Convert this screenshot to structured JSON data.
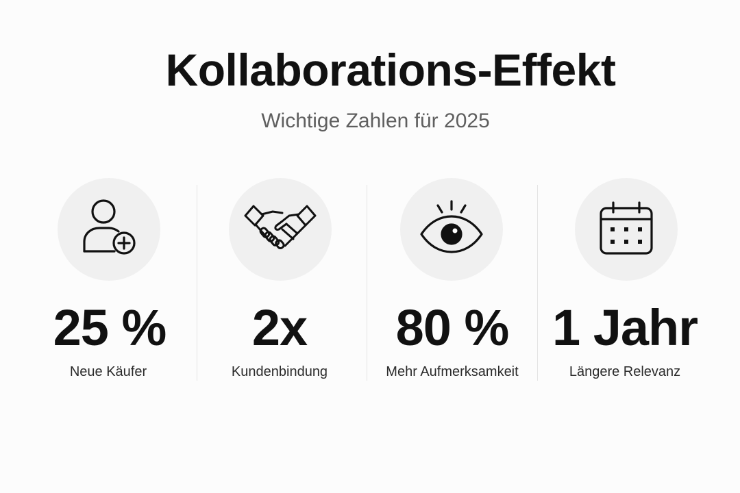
{
  "header": {
    "title": "Kollaborations-Effekt",
    "subtitle": "Wichtige Zahlen für 2025"
  },
  "colors": {
    "background": "#fcfcfc",
    "icon_circle": "#f0f0f0",
    "text": "#111111",
    "subtitle": "#5f5f5f",
    "divider": "#e4e4e4"
  },
  "stats": [
    {
      "icon": "user-plus-icon",
      "value": "25 %",
      "label": "Neue Käufer"
    },
    {
      "icon": "handshake-icon",
      "value": "2x",
      "label": "Kundenbindung"
    },
    {
      "icon": "eye-icon",
      "value": "80 %",
      "label": "Mehr Aufmerksamkeit"
    },
    {
      "icon": "calendar-icon",
      "value": "1 Jahr",
      "label": "Längere Relevanz"
    }
  ]
}
